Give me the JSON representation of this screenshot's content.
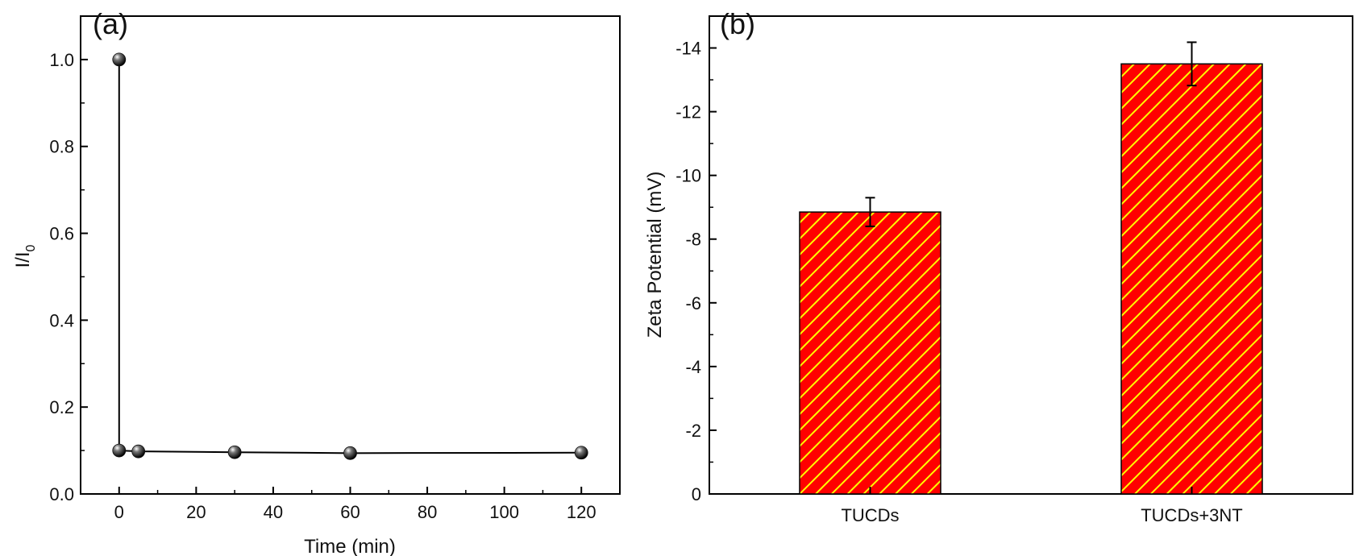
{
  "chart_data": [
    {
      "panel": "(a)",
      "type": "line",
      "xlabel": "Time (min)",
      "ylabel": "I/I",
      "ylabel_subscript": "0",
      "xlim": [
        -10,
        130
      ],
      "ylim": [
        0,
        1.1
      ],
      "x_ticks": [
        0,
        20,
        40,
        60,
        80,
        100,
        120
      ],
      "y_ticks": [
        "0.0",
        "0.2",
        "0.4",
        "0.6",
        "0.8",
        "1.0"
      ],
      "marker_color": "#111111",
      "line_color": "#000000",
      "series": [
        {
          "x": [
            0,
            0,
            5,
            30,
            60,
            120
          ],
          "y": [
            1.0,
            0.1,
            0.098,
            0.096,
            0.094,
            0.095
          ]
        }
      ]
    },
    {
      "panel": "(b)",
      "type": "bar",
      "xlabel": "",
      "ylabel": "Zeta Potential (mV)",
      "ylim": [
        0,
        -15
      ],
      "y_ticks": [
        "0",
        "-2",
        "-4",
        "-6",
        "-8",
        "-10",
        "-12",
        "-14"
      ],
      "categories": [
        "TUCDs",
        "TUCDs+3NT"
      ],
      "values": [
        -8.85,
        -13.5
      ],
      "errors": [
        0.45,
        0.68
      ],
      "bar_fill": "#ff0000",
      "hatch_color": "#ffff00"
    }
  ]
}
